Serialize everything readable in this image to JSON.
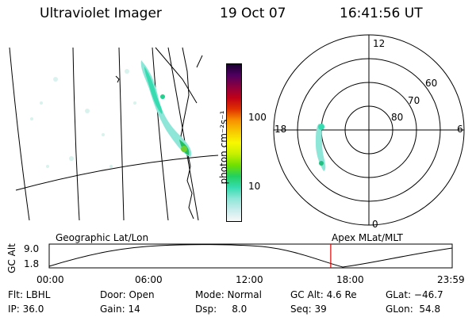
{
  "header": {
    "title": "Ultraviolet Imager",
    "date": "19 Oct 07",
    "time": "16:41:56 UT"
  },
  "colorbar": {
    "unit_label": "photon cm⁻²s⁻¹",
    "ticks": [
      "100",
      "10"
    ],
    "colors": [
      "#f8f8f8",
      "#c8ecec",
      "#8ee6d8",
      "#36dcb0",
      "#22d060",
      "#70e000",
      "#c8f000",
      "#f8f800",
      "#f8c800",
      "#f89000",
      "#e03000",
      "#c00018",
      "#8c0040",
      "#500060",
      "#180030"
    ]
  },
  "polar": {
    "mlt_labels": {
      "top": "12",
      "right": "6",
      "bottom": "0",
      "left": "18"
    },
    "lat_labels": [
      "60",
      "70",
      "80"
    ]
  },
  "timeline": {
    "left_label": "Geographic Lat/Lon",
    "right_label": "Apex MLat/MLT",
    "axis_title": "GC Alt",
    "y_ticks": [
      "9.0",
      "1.8"
    ],
    "x_ticks": [
      "00:00",
      "06:00",
      "12:00",
      "18:00",
      "23:59"
    ],
    "marker_color": "#e00000",
    "current_time_fraction": 0.6986
  },
  "info": {
    "col1": [
      "Flt: LBHL",
      "IP: 36.0"
    ],
    "col2": [
      "Door: Open",
      "Gain: 14"
    ],
    "col3": [
      "Mode: Normal",
      "Dsp:     8.0"
    ],
    "col4": [
      "GC Alt: 4.6 Re",
      "Seq: 39"
    ],
    "col5": [
      "GLat: −46.7",
      "GLon:  54.8"
    ]
  }
}
